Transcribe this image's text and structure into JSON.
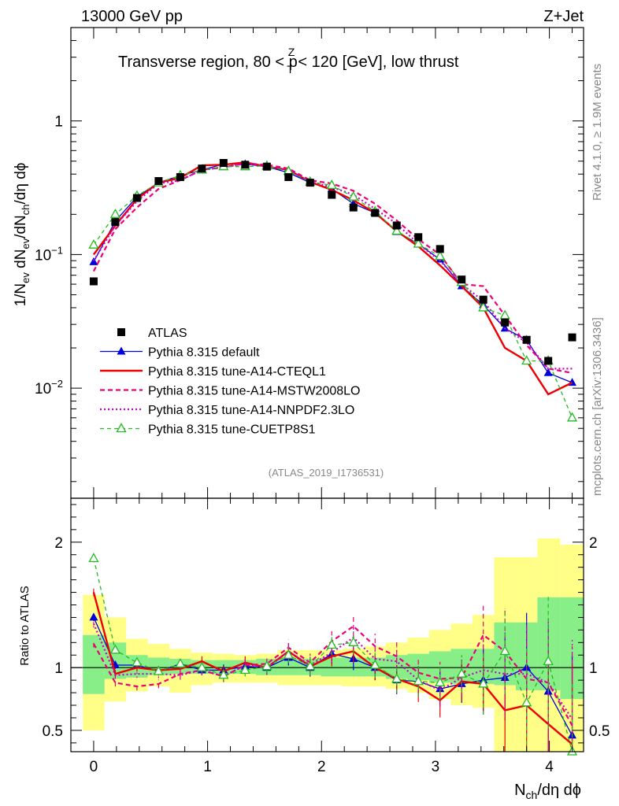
{
  "header": {
    "energy_label": "13000 GeV pp",
    "process_label": "Z+Jet",
    "region_title_pre": "Transverse region, 80 < p",
    "region_title_sup": "Z",
    "region_title_sub": "T",
    "region_title_post": " < 120 [GeV], low thrust",
    "analysis_id": "(ATLAS_2019_I1736531)",
    "rivet_label": "Rivet 4.1.0, ≥ 1.9M events",
    "mcplots_label": "mcplots.cern.ch [arXiv:1306.3436]"
  },
  "axes": {
    "ylabel_top": "1/N_ev dN_ev/dN_ch/dη dϕ",
    "ylabel_bottom": "Ratio to ATLAS",
    "xlabel": "N_ch/dη dϕ",
    "x_ticks": [
      "0",
      "1",
      "2",
      "3",
      "4"
    ],
    "y_ticks_top": [
      "10^-2",
      "10^-1",
      "1"
    ],
    "y_ticks_bottom": [
      "0.5",
      "1",
      "2"
    ]
  },
  "colors": {
    "atlas": "#000000",
    "default": "#0000dd",
    "cteql1": "#ee0000",
    "mstw": "#ee0077",
    "nnpdf": "#cc00cc",
    "cuetp": "#22bb22",
    "band_outer": "#ffff88",
    "band_inner": "#88ee88"
  },
  "chart_data": {
    "type": "line",
    "title": "Transverse region, 80 < pT^Z < 120 [GeV], low thrust",
    "x_range": [
      -0.2,
      4.3
    ],
    "ylim_top": [
      0.0015,
      5.0
    ],
    "ylim_bottom": [
      0.33,
      2.35
    ],
    "yscale_top": "log",
    "x": [
      0.0,
      0.19,
      0.38,
      0.57,
      0.76,
      0.95,
      1.14,
      1.33,
      1.52,
      1.71,
      1.9,
      2.09,
      2.28,
      2.47,
      2.66,
      2.85,
      3.04,
      3.23,
      3.42,
      3.61,
      3.8,
      3.99,
      4.2
    ],
    "series": [
      {
        "name": "ATLAS",
        "key": "atlas",
        "style": "marker-square",
        "values": [
          0.063,
          0.175,
          0.265,
          0.355,
          0.38,
          0.44,
          0.485,
          0.47,
          0.455,
          0.38,
          0.345,
          0.28,
          0.225,
          0.205,
          0.165,
          0.135,
          0.11,
          0.065,
          0.046,
          0.031,
          0.023,
          0.016,
          0.024
        ],
        "ratio": [
          1,
          1,
          1,
          1,
          1,
          1,
          1,
          1,
          1,
          1,
          1,
          1,
          1,
          1,
          1,
          1,
          1,
          1,
          1,
          1,
          1,
          1,
          1
        ]
      },
      {
        "name": "Pythia 8.315 default",
        "key": "default",
        "style": "solid-triangle",
        "values": [
          0.088,
          0.178,
          0.27,
          0.345,
          0.39,
          0.43,
          0.475,
          0.475,
          0.455,
          0.41,
          0.345,
          0.31,
          0.24,
          0.205,
          0.148,
          0.12,
          0.092,
          0.058,
          0.042,
          0.028,
          0.023,
          0.013,
          0.011
        ],
        "ratio": [
          1.4,
          1.02,
          1.02,
          0.97,
          1.03,
          0.98,
          0.98,
          1.01,
          1.0,
          1.08,
          1.0,
          1.11,
          1.07,
          1.0,
          0.9,
          0.89,
          0.83,
          0.87,
          0.9,
          0.92,
          1.0,
          0.81,
          0.46
        ]
      },
      {
        "name": "Pythia 8.315 tune-A14-CTEQL1",
        "key": "cteql1",
        "style": "solid-thick",
        "values": [
          0.1,
          0.165,
          0.26,
          0.345,
          0.375,
          0.465,
          0.47,
          0.49,
          0.455,
          0.43,
          0.35,
          0.305,
          0.255,
          0.205,
          0.15,
          0.115,
          0.083,
          0.058,
          0.04,
          0.02,
          0.016,
          0.009,
          0.011
        ],
        "ratio": [
          1.6,
          0.95,
          1.0,
          0.98,
          0.99,
          1.05,
          0.97,
          1.04,
          1.0,
          1.13,
          1.01,
          1.09,
          1.13,
          1.0,
          0.91,
          0.85,
          0.74,
          0.89,
          0.87,
          0.66,
          0.7,
          0.55,
          0.39
        ]
      },
      {
        "name": "Pythia 8.315 tune-A14-MSTW2008LO",
        "key": "mstw",
        "style": "dashed",
        "values": [
          0.075,
          0.155,
          0.225,
          0.31,
          0.36,
          0.43,
          0.45,
          0.48,
          0.47,
          0.44,
          0.36,
          0.34,
          0.3,
          0.24,
          0.18,
          0.13,
          0.1,
          0.06,
          0.058,
          0.035,
          0.021,
          0.014,
          0.013
        ],
        "ratio": [
          1.19,
          0.88,
          0.85,
          0.87,
          0.95,
          0.98,
          0.93,
          1.02,
          1.03,
          1.16,
          1.04,
          1.21,
          1.33,
          1.17,
          1.09,
          0.96,
          0.91,
          0.92,
          1.26,
          1.13,
          0.91,
          0.88,
          0.54
        ]
      },
      {
        "name": "Pythia 8.315 tune-A14-NNPDF2.3LO",
        "key": "nnpdf",
        "style": "dotted",
        "values": [
          0.09,
          0.165,
          0.25,
          0.34,
          0.36,
          0.43,
          0.45,
          0.48,
          0.455,
          0.43,
          0.35,
          0.32,
          0.28,
          0.22,
          0.17,
          0.12,
          0.09,
          0.06,
          0.045,
          0.028,
          0.022,
          0.014,
          0.014
        ],
        "ratio": [
          1.35,
          0.94,
          0.95,
          0.95,
          0.94,
          0.98,
          0.93,
          1.02,
          1.0,
          1.13,
          1.02,
          1.12,
          1.24,
          1.07,
          1.05,
          0.9,
          0.82,
          0.92,
          0.98,
          0.95,
          0.95,
          0.88,
          0.59
        ]
      },
      {
        "name": "Pythia 8.315 tune-CUETP8S1",
        "key": "cuetp",
        "style": "dashed-open-triangle",
        "values": [
          0.118,
          0.2,
          0.275,
          0.345,
          0.39,
          0.43,
          0.455,
          0.455,
          0.46,
          0.42,
          0.35,
          0.33,
          0.27,
          0.21,
          0.15,
          0.12,
          0.097,
          0.062,
          0.04,
          0.035,
          0.016,
          0.016,
          0.006
        ],
        "ratio": [
          1.87,
          1.14,
          1.04,
          0.97,
          1.03,
          1.0,
          0.94,
          0.98,
          1.01,
          1.1,
          1.01,
          1.18,
          1.2,
          1.02,
          0.91,
          0.89,
          0.88,
          0.95,
          0.87,
          1.13,
          0.72,
          1.05,
          0.26
        ]
      }
    ],
    "band_inner_ratio": [
      [
        0.79,
        1.26
      ],
      [
        0.91,
        1.2
      ],
      [
        0.92,
        1.1
      ],
      [
        0.94,
        1.08
      ],
      [
        0.95,
        1.07
      ],
      [
        0.95,
        1.06
      ],
      [
        0.95,
        1.06
      ],
      [
        0.95,
        1.06
      ],
      [
        0.94,
        1.07
      ],
      [
        0.94,
        1.07
      ],
      [
        0.94,
        1.07
      ],
      [
        0.93,
        1.08
      ],
      [
        0.93,
        1.08
      ],
      [
        0.93,
        1.08
      ],
      [
        0.91,
        1.1
      ],
      [
        0.9,
        1.11
      ],
      [
        0.88,
        1.13
      ],
      [
        0.87,
        1.15
      ],
      [
        0.87,
        1.15
      ],
      [
        0.86,
        1.36
      ],
      [
        0.82,
        1.36
      ],
      [
        0.82,
        1.56
      ],
      [
        0.75,
        1.56
      ]
    ],
    "band_outer_ratio": [
      [
        0.5,
        1.58
      ],
      [
        0.73,
        1.4
      ],
      [
        0.81,
        1.23
      ],
      [
        0.85,
        1.19
      ],
      [
        0.8,
        1.15
      ],
      [
        0.86,
        1.12
      ],
      [
        0.88,
        1.11
      ],
      [
        0.88,
        1.1
      ],
      [
        0.88,
        1.11
      ],
      [
        0.86,
        1.14
      ],
      [
        0.86,
        1.14
      ],
      [
        0.86,
        1.14
      ],
      [
        0.85,
        1.15
      ],
      [
        0.85,
        1.17
      ],
      [
        0.83,
        1.2
      ],
      [
        0.8,
        1.24
      ],
      [
        0.75,
        1.3
      ],
      [
        0.7,
        1.35
      ],
      [
        0.68,
        1.42
      ],
      [
        0.33,
        1.88
      ],
      [
        0.33,
        1.88
      ],
      [
        0.33,
        2.03
      ],
      [
        0.33,
        1.98
      ]
    ]
  }
}
